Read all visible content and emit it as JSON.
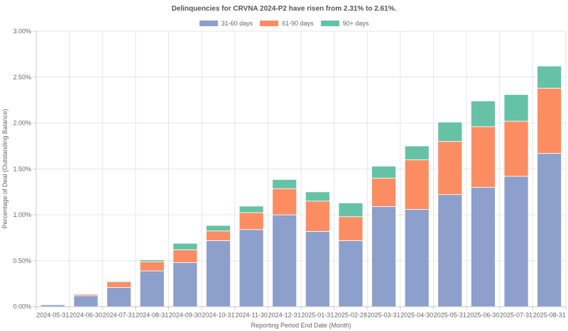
{
  "chart_data": {
    "type": "bar",
    "stacked": true,
    "title": "Delinquencies for CRVNA 2024-P2 have risen from 2.31% to 2.61%.",
    "xlabel": "Reporting Period End Date (Month)",
    "ylabel": "Percentage of Deal (Outstanding Balance)",
    "ylim": [
      0,
      3.0
    ],
    "yticks": [
      "0.00%",
      "0.50%",
      "1.00%",
      "1.50%",
      "2.00%",
      "2.50%",
      "3.00%"
    ],
    "ytick_values": [
      0,
      0.5,
      1.0,
      1.5,
      2.0,
      2.5,
      3.0
    ],
    "grid": true,
    "legend_position": "top-center",
    "categories": [
      "2024-05-31",
      "2024-06-30",
      "2024-07-31",
      "2024-08-31",
      "2024-09-30",
      "2024-10-31",
      "2024-11-30",
      "2024-12-31",
      "2025-01-31",
      "2025-02-28",
      "2025-03-31",
      "2025-04-30",
      "2025-05-31",
      "2025-06-30",
      "2025-07-31",
      "2025-08-31"
    ],
    "series": [
      {
        "name": "31-60 days",
        "color": "#8da0cb",
        "values": [
          0.02,
          0.12,
          0.21,
          0.39,
          0.48,
          0.72,
          0.84,
          1.0,
          0.82,
          0.72,
          1.09,
          1.06,
          1.22,
          1.3,
          1.42,
          1.67
        ]
      },
      {
        "name": "61-90 days",
        "color": "#fc8d62",
        "values": [
          0.0,
          0.015,
          0.06,
          0.1,
          0.14,
          0.105,
          0.185,
          0.285,
          0.33,
          0.26,
          0.31,
          0.54,
          0.58,
          0.66,
          0.6,
          0.71
        ]
      },
      {
        "name": "90+ days",
        "color": "#66c2a5",
        "values": [
          0.0,
          0.0,
          0.01,
          0.02,
          0.07,
          0.06,
          0.07,
          0.1,
          0.1,
          0.15,
          0.13,
          0.15,
          0.21,
          0.28,
          0.29,
          0.24
        ]
      }
    ]
  }
}
